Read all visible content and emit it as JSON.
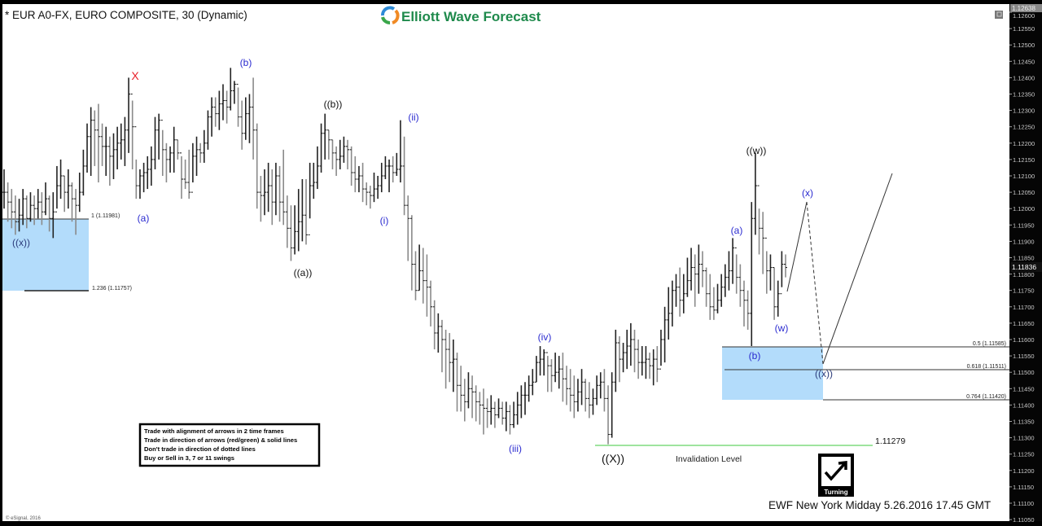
{
  "header": {
    "title": "* EUR A0-FX, EURO COMPOSITE, 30 (Dynamic)",
    "logo_text": "Elliott Wave Forecast",
    "restore_icon": "window-restore-icon"
  },
  "colors": {
    "logo_green": "#1f8a4c",
    "wave_blue": "#2a2ad0",
    "box_blue": "#b3dcfb",
    "invalidation_green": "#7fdc7f",
    "label_red": "#e8202a"
  },
  "info_box": [
    "Trade with alignment of arrows in 2 time frames",
    "Trade in direction of arrows (red/green) & solid lines",
    "Don't trade in direction of dotted lines",
    "Buy or Sell in 3, 7 or 11 swings"
  ],
  "footer": {
    "caption": "EWF New York Midday 5.26.2016 17.45 GMT",
    "copyright": "© eSignal, 2016",
    "turning_badge": "Turning"
  },
  "chart_data": {
    "type": "ohlc",
    "timeframe": "30",
    "ylim": [
      1.1103,
      1.1266
    ],
    "y_ticks": [
      "1.12600",
      "1.12550",
      "1.12500",
      "1.12450",
      "1.12400",
      "1.12350",
      "1.12300",
      "1.12250",
      "1.12200",
      "1.12150",
      "1.12100",
      "1.12050",
      "1.12000",
      "1.11950",
      "1.11900",
      "1.11850",
      "1.11800",
      "1.11750",
      "1.11700",
      "1.11650",
      "1.11600",
      "1.11550",
      "1.11500",
      "1.11450",
      "1.11400",
      "1.11350",
      "1.11300",
      "1.11250",
      "1.11200",
      "1.11150",
      "1.11100",
      "1.11050"
    ],
    "price_tags": {
      "high": "1.12638",
      "last": "1.11836"
    },
    "bar_fields": [
      "high",
      "low",
      "close"
    ],
    "bars": [
      [
        1.1212,
        1.12,
        1.1205
      ],
      [
        1.1208,
        1.1196,
        1.1202
      ],
      [
        1.1206,
        1.1194,
        1.1199
      ],
      [
        1.1204,
        1.1192,
        1.1196
      ],
      [
        1.1203,
        1.1193,
        1.1198
      ],
      [
        1.1206,
        1.1195,
        1.1203
      ],
      [
        1.1204,
        1.1194,
        1.1197
      ],
      [
        1.1205,
        1.1196,
        1.1201
      ],
      [
        1.1204,
        1.1195,
        1.12
      ],
      [
        1.1206,
        1.1197,
        1.1202
      ],
      [
        1.1205,
        1.1195,
        1.1199
      ],
      [
        1.1208,
        1.1198,
        1.1203
      ],
      [
        1.1204,
        1.1193,
        1.1197
      ],
      [
        1.1205,
        1.1191,
        1.1199
      ],
      [
        1.1213,
        1.12,
        1.1207
      ],
      [
        1.1215,
        1.1203,
        1.121
      ],
      [
        1.121,
        1.1199,
        1.1205
      ],
      [
        1.1212,
        1.12,
        1.1207
      ],
      [
        1.1208,
        1.1196,
        1.1203
      ],
      [
        1.1206,
        1.1192,
        1.1201
      ],
      [
        1.1211,
        1.1199,
        1.1205
      ],
      [
        1.1218,
        1.1204,
        1.1213
      ],
      [
        1.1226,
        1.1211,
        1.1222
      ],
      [
        1.1231,
        1.121,
        1.1227
      ],
      [
        1.123,
        1.1213,
        1.1224
      ],
      [
        1.1232,
        1.1208,
        1.1222
      ],
      [
        1.1226,
        1.1213,
        1.1219
      ],
      [
        1.1225,
        1.121,
        1.1219
      ],
      [
        1.1222,
        1.1207,
        1.1216
      ],
      [
        1.1223,
        1.1209,
        1.1218
      ],
      [
        1.1225,
        1.1212,
        1.122
      ],
      [
        1.1226,
        1.1215,
        1.1221
      ],
      [
        1.1228,
        1.1213,
        1.1224
      ],
      [
        1.124,
        1.1217,
        1.1235
      ],
      [
        1.1233,
        1.1212,
        1.1225
      ],
      [
        1.1215,
        1.1203,
        1.1207
      ],
      [
        1.1212,
        1.1203,
        1.121
      ],
      [
        1.1214,
        1.1205,
        1.1211
      ],
      [
        1.1216,
        1.1206,
        1.1212
      ],
      [
        1.1219,
        1.1207,
        1.1215
      ],
      [
        1.1228,
        1.1212,
        1.1224
      ],
      [
        1.1229,
        1.1215,
        1.1227
      ],
      [
        1.1224,
        1.121,
        1.1218
      ],
      [
        1.122,
        1.1208,
        1.1215
      ],
      [
        1.1219,
        1.1211,
        1.1217
      ],
      [
        1.1225,
        1.1211,
        1.1221
      ],
      [
        1.1221,
        1.1215,
        1.1217
      ],
      [
        1.1216,
        1.1203,
        1.1209
      ],
      [
        1.1215,
        1.1206,
        1.1208
      ],
      [
        1.1218,
        1.1203,
        1.1205
      ],
      [
        1.122,
        1.1208,
        1.1216
      ],
      [
        1.1222,
        1.121,
        1.1218
      ],
      [
        1.122,
        1.1214,
        1.1217
      ],
      [
        1.1224,
        1.1214,
        1.122
      ],
      [
        1.123,
        1.1218,
        1.1228
      ],
      [
        1.1234,
        1.1222,
        1.1231
      ],
      [
        1.1234,
        1.1225,
        1.1229
      ],
      [
        1.1236,
        1.1224,
        1.1232
      ],
      [
        1.1238,
        1.1227,
        1.1233
      ],
      [
        1.1236,
        1.1226,
        1.1231
      ],
      [
        1.1243,
        1.123,
        1.1236
      ],
      [
        1.1239,
        1.1232,
        1.1238
      ],
      [
        1.1237,
        1.1225,
        1.1228
      ],
      [
        1.1233,
        1.1218,
        1.1223
      ],
      [
        1.1234,
        1.1221,
        1.1229
      ],
      [
        1.1235,
        1.122,
        1.1231
      ],
      [
        1.124,
        1.1215,
        1.1224
      ],
      [
        1.1226,
        1.12,
        1.1205
      ],
      [
        1.121,
        1.1196,
        1.1204
      ],
      [
        1.1212,
        1.1198,
        1.1205
      ],
      [
        1.1214,
        1.1199,
        1.1207
      ],
      [
        1.1212,
        1.1195,
        1.1202
      ],
      [
        1.1214,
        1.1198,
        1.121
      ],
      [
        1.1213,
        1.1196,
        1.1202
      ],
      [
        1.1218,
        1.1195,
        1.1199
      ],
      [
        1.1204,
        1.1188,
        1.1194
      ],
      [
        1.1201,
        1.1184,
        1.1188
      ],
      [
        1.1201,
        1.1186,
        1.1193
      ],
      [
        1.1206,
        1.1187,
        1.1196
      ],
      [
        1.1209,
        1.119,
        1.1198
      ],
      [
        1.1209,
        1.1189,
        1.1192
      ],
      [
        1.1214,
        1.1197,
        1.1207
      ],
      [
        1.1214,
        1.1203,
        1.1208
      ],
      [
        1.1219,
        1.1206,
        1.1213
      ],
      [
        1.1226,
        1.1211,
        1.1223
      ],
      [
        1.1229,
        1.1215,
        1.1224
      ],
      [
        1.1224,
        1.1215,
        1.1221
      ],
      [
        1.1221,
        1.1212,
        1.1217
      ],
      [
        1.1219,
        1.121,
        1.1215
      ],
      [
        1.1221,
        1.1212,
        1.1216
      ],
      [
        1.1222,
        1.1214,
        1.1219
      ],
      [
        1.1221,
        1.1212,
        1.1218
      ],
      [
        1.1219,
        1.1207,
        1.1211
      ],
      [
        1.1216,
        1.1205,
        1.1209
      ],
      [
        1.1213,
        1.1205,
        1.121
      ],
      [
        1.1214,
        1.1202,
        1.1206
      ],
      [
        1.1208,
        1.1201,
        1.1205
      ],
      [
        1.1207,
        1.12,
        1.1204
      ],
      [
        1.1211,
        1.1202,
        1.1206
      ],
      [
        1.121,
        1.1203,
        1.1207
      ],
      [
        1.1214,
        1.1205,
        1.121
      ],
      [
        1.1216,
        1.1209,
        1.1213
      ],
      [
        1.1215,
        1.1205,
        1.1213
      ],
      [
        1.1216,
        1.1208,
        1.1211
      ],
      [
        1.1217,
        1.121,
        1.1212
      ],
      [
        1.1227,
        1.1208,
        1.1213
      ],
      [
        1.1222,
        1.1198,
        1.1201
      ],
      [
        1.1204,
        1.1184,
        1.1197
      ],
      [
        1.1198,
        1.1175,
        1.1183
      ],
      [
        1.1187,
        1.1172,
        1.1175
      ],
      [
        1.1189,
        1.1175,
        1.1181
      ],
      [
        1.1188,
        1.1171,
        1.1178
      ],
      [
        1.1186,
        1.1167,
        1.1176
      ],
      [
        1.1178,
        1.1164,
        1.117
      ],
      [
        1.1172,
        1.1157,
        1.1162
      ],
      [
        1.1168,
        1.1156,
        1.1164
      ],
      [
        1.1166,
        1.115,
        1.116
      ],
      [
        1.1163,
        1.1145,
        1.1157
      ],
      [
        1.1162,
        1.1147,
        1.1153
      ],
      [
        1.116,
        1.1144,
        1.1154
      ],
      [
        1.1156,
        1.1138,
        1.1146
      ],
      [
        1.1152,
        1.1138,
        1.1143
      ],
      [
        1.1148,
        1.1135,
        1.1141
      ],
      [
        1.115,
        1.1139,
        1.1145
      ],
      [
        1.1149,
        1.1136,
        1.1144
      ],
      [
        1.1146,
        1.1135,
        1.1141
      ],
      [
        1.1144,
        1.1134,
        1.114
      ],
      [
        1.1145,
        1.1131,
        1.1139
      ],
      [
        1.1142,
        1.1133,
        1.1138
      ],
      [
        1.1143,
        1.1134,
        1.1139
      ],
      [
        1.1141,
        1.1133,
        1.1137
      ],
      [
        1.1142,
        1.1136,
        1.1139
      ],
      [
        1.1141,
        1.1134,
        1.1136
      ],
      [
        1.1141,
        1.1132,
        1.1138
      ],
      [
        1.114,
        1.1131,
        1.1134
      ],
      [
        1.1141,
        1.1133,
        1.1137
      ],
      [
        1.1144,
        1.1134,
        1.114
      ],
      [
        1.1146,
        1.1136,
        1.1143
      ],
      [
        1.1147,
        1.1137,
        1.1143
      ],
      [
        1.1149,
        1.1141,
        1.1146
      ],
      [
        1.1151,
        1.1143,
        1.1147
      ],
      [
        1.1155,
        1.1147,
        1.1153
      ],
      [
        1.1158,
        1.1149,
        1.1154
      ],
      [
        1.1157,
        1.1149,
        1.1156
      ],
      [
        1.1155,
        1.1144,
        1.1152
      ],
      [
        1.1154,
        1.1144,
        1.1149
      ],
      [
        1.1156,
        1.1147,
        1.115
      ],
      [
        1.1155,
        1.1145,
        1.1151
      ],
      [
        1.1156,
        1.1141,
        1.1148
      ],
      [
        1.1152,
        1.114,
        1.1145
      ],
      [
        1.1151,
        1.1138,
        1.1143
      ],
      [
        1.1149,
        1.1136,
        1.1141
      ],
      [
        1.1148,
        1.1138,
        1.1144
      ],
      [
        1.1151,
        1.114,
        1.1147
      ],
      [
        1.1148,
        1.1138,
        1.1142
      ],
      [
        1.1147,
        1.1136,
        1.114
      ],
      [
        1.1145,
        1.1137,
        1.1142
      ],
      [
        1.1149,
        1.114,
        1.1146
      ],
      [
        1.115,
        1.1142,
        1.1147
      ],
      [
        1.1151,
        1.1138,
        1.1142
      ],
      [
        1.1146,
        1.1128,
        1.1131
      ],
      [
        1.115,
        1.113,
        1.1147
      ],
      [
        1.1163,
        1.1144,
        1.1159
      ],
      [
        1.1161,
        1.1147,
        1.1154
      ],
      [
        1.1159,
        1.115,
        1.1156
      ],
      [
        1.1163,
        1.1151,
        1.1158
      ],
      [
        1.1165,
        1.1152,
        1.116
      ],
      [
        1.1163,
        1.115,
        1.1157
      ],
      [
        1.116,
        1.1148,
        1.1153
      ],
      [
        1.1158,
        1.1149,
        1.1153
      ],
      [
        1.1158,
        1.1148,
        1.1154
      ],
      [
        1.1156,
        1.1148,
        1.1152
      ],
      [
        1.1157,
        1.1146,
        1.1154
      ],
      [
        1.1158,
        1.1147,
        1.1151
      ],
      [
        1.1163,
        1.1152,
        1.116
      ],
      [
        1.117,
        1.1153,
        1.1166
      ],
      [
        1.1176,
        1.116,
        1.1168
      ],
      [
        1.1178,
        1.1164,
        1.1175
      ],
      [
        1.118,
        1.117,
        1.1176
      ],
      [
        1.1182,
        1.1167,
        1.1172
      ],
      [
        1.118,
        1.1168,
        1.1174
      ],
      [
        1.1185,
        1.1173,
        1.1178
      ],
      [
        1.1188,
        1.1175,
        1.1182
      ],
      [
        1.1186,
        1.117,
        1.118
      ],
      [
        1.1189,
        1.1174,
        1.1183
      ],
      [
        1.1187,
        1.1176,
        1.1181
      ],
      [
        1.1182,
        1.117,
        1.1174
      ],
      [
        1.118,
        1.1166,
        1.117
      ],
      [
        1.1176,
        1.1166,
        1.1169
      ],
      [
        1.1177,
        1.1168,
        1.1172
      ],
      [
        1.118,
        1.117,
        1.1176
      ],
      [
        1.1183,
        1.1173,
        1.1179
      ],
      [
        1.1187,
        1.1175,
        1.1181
      ],
      [
        1.1191,
        1.1177,
        1.1188
      ],
      [
        1.1186,
        1.1174,
        1.1179
      ],
      [
        1.1183,
        1.117,
        1.1175
      ],
      [
        1.1178,
        1.1164,
        1.1172
      ],
      [
        1.1175,
        1.1163,
        1.1168
      ],
      [
        1.1202,
        1.1158,
        1.1197
      ],
      [
        1.1217,
        1.1192,
        1.1207
      ],
      [
        1.12,
        1.1186,
        1.1194
      ],
      [
        1.1199,
        1.118,
        1.1191
      ],
      [
        1.1187,
        1.1174,
        1.1181
      ],
      [
        1.1186,
        1.1175,
        1.1182
      ],
      [
        1.1182,
        1.1166,
        1.117
      ],
      [
        1.1178,
        1.1167,
        1.1174
      ],
      [
        1.1187,
        1.1176,
        1.1183
      ],
      [
        1.1186,
        1.1179,
        1.1182
      ]
    ],
    "fib_zones": {
      "left": {
        "top_label": "1 (1.11981)",
        "bottom_label": "1.236 (1.11757)",
        "top": 1.11981,
        "bottom": 1.11757
      },
      "right": {
        "levels": [
          {
            "label": "0.5 (1.11585)",
            "price": 1.11585
          },
          {
            "label": "0.618 (1.11511)",
            "price": 1.11511
          },
          {
            "label": "0.764 (1.11420)",
            "price": 1.1142
          }
        ]
      }
    },
    "invalidation": {
      "price": 1.11279,
      "price_label": "1.11279",
      "label": "Invalidation Level"
    },
    "wave_labels": {
      "X": "X",
      "b_top": "(b)",
      "a1": "(a)",
      "bb": "((b))",
      "aa": "((a))",
      "ii": "(ii)",
      "i": "(i)",
      "iii": "(iii)",
      "iv": "(iv)",
      "XX": "((X))",
      "a2": "(a)",
      "b2": "(b)",
      "ww": "((w))",
      "w": "(w)",
      "x": "(x)",
      "xx_right": "((x))",
      "xx_left": "((x))"
    }
  }
}
